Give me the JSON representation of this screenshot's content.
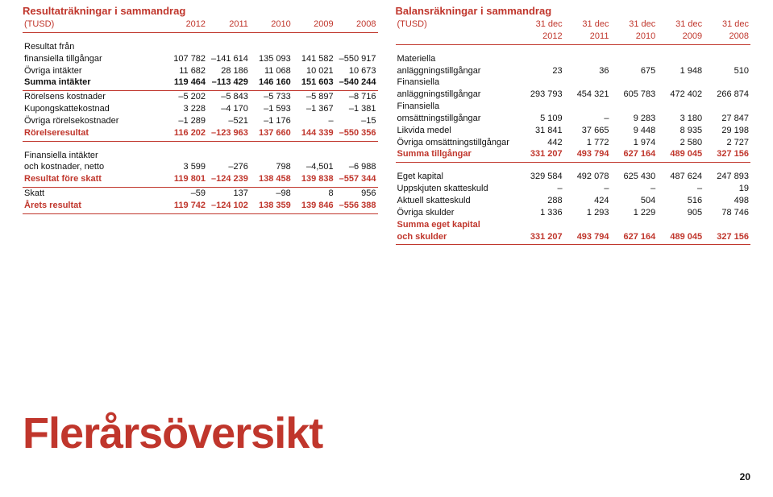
{
  "accent_color": "#c0362c",
  "page_number": "20",
  "big_title": "Flerårsöversikt",
  "income": {
    "title": "Resultaträkningar i sammandrag",
    "unit": "(TUSD)",
    "years": [
      "2012",
      "2011",
      "2010",
      "2009",
      "2008"
    ],
    "rows": [
      {
        "type": "text",
        "label": "Resultat från"
      },
      {
        "type": "data",
        "label": "finansiella tillgångar",
        "v": [
          "107 782",
          "–141 614",
          "135 093",
          "141 582",
          "–550 917"
        ]
      },
      {
        "type": "data",
        "label": "Övriga intäkter",
        "v": [
          "11 682",
          "28 186",
          "11 068",
          "10 021",
          "10 673"
        ]
      },
      {
        "type": "data",
        "label": "Summa intäkter",
        "v": [
          "119 464",
          "–113 429",
          "146 160",
          "151 603",
          "–540 244"
        ],
        "bold": true,
        "rule_after": true
      },
      {
        "type": "data",
        "label": "Rörelsens kostnader",
        "v": [
          "–5 202",
          "–5 843",
          "–5 733",
          "–5 897",
          "–8 716"
        ]
      },
      {
        "type": "data",
        "label": "Kupongskattekostnad",
        "v": [
          "3 228",
          "–4 170",
          "–1 593",
          "–1 367",
          "–1 381"
        ]
      },
      {
        "type": "data",
        "label": "Övriga rörelsekostnader",
        "v": [
          "–1 289",
          "–521",
          "–1 176",
          "–",
          "–15"
        ]
      },
      {
        "type": "data",
        "label": "Rörelseresultat",
        "v": [
          "116 202",
          "–123 963",
          "137 660",
          "144 339",
          "–550 356"
        ],
        "bold": true,
        "accent": true,
        "rule_after": true
      },
      {
        "type": "spacer"
      },
      {
        "type": "text",
        "label": "Finansiella intäkter"
      },
      {
        "type": "data",
        "label": "och kostnader, netto",
        "v": [
          "3 599",
          "–276",
          "798",
          "–4,501",
          "–6 988"
        ]
      },
      {
        "type": "data",
        "label": "Resultat före skatt",
        "v": [
          "119 801",
          "–124 239",
          "138 458",
          "139 838",
          "–557 344"
        ],
        "bold": true,
        "accent": true,
        "rule_after": true
      },
      {
        "type": "data",
        "label": "Skatt",
        "v": [
          "–59",
          "137",
          "–98",
          "8",
          "956"
        ]
      },
      {
        "type": "data",
        "label": "Årets resultat",
        "v": [
          "119 742",
          "–124 102",
          "138 359",
          "139 846",
          "–556 388"
        ],
        "bold": true,
        "accent": true,
        "rule_after": true
      }
    ]
  },
  "balance": {
    "title": "Balansräkningar i sammandrag",
    "unit": "(TUSD)",
    "years_top": [
      "31 dec",
      "31 dec",
      "31 dec",
      "31 dec",
      "31 dec"
    ],
    "years_bot": [
      "2012",
      "2011",
      "2010",
      "2009",
      "2008"
    ],
    "rows": [
      {
        "type": "text",
        "label": "Materiella"
      },
      {
        "type": "data",
        "label": "anläggningstillgångar",
        "v": [
          "23",
          "36",
          "675",
          "1 948",
          "510"
        ]
      },
      {
        "type": "text",
        "label": "Finansiella"
      },
      {
        "type": "data",
        "label": "anläggningstillgångar",
        "v": [
          "293 793",
          "454 321",
          "605 783",
          "472 402",
          "266 874"
        ]
      },
      {
        "type": "text",
        "label": "Finansiella"
      },
      {
        "type": "data",
        "label": "omsättningstillgångar",
        "v": [
          "5 109",
          "–",
          "9 283",
          "3 180",
          "27 847"
        ]
      },
      {
        "type": "data",
        "label": "Likvida medel",
        "v": [
          "31 841",
          "37 665",
          "9 448",
          "8 935",
          "29 198"
        ]
      },
      {
        "type": "data",
        "label": "Övriga omsättningstillgångar",
        "v": [
          "442",
          "1 772",
          "1 974",
          "2 580",
          "2 727"
        ]
      },
      {
        "type": "data",
        "label": "Summa tillgångar",
        "v": [
          "331 207",
          "493 794",
          "627 164",
          "489 045",
          "327 156"
        ],
        "bold": true,
        "accent": true,
        "rule_after": true
      },
      {
        "type": "spacer"
      },
      {
        "type": "data",
        "label": "Eget kapital",
        "v": [
          "329 584",
          "492 078",
          "625 430",
          "487 624",
          "247 893"
        ]
      },
      {
        "type": "data",
        "label": "Uppskjuten skatteskuld",
        "v": [
          "–",
          "–",
          "–",
          "–",
          "19"
        ]
      },
      {
        "type": "data",
        "label": "Aktuell skatteskuld",
        "v": [
          "288",
          "424",
          "504",
          "516",
          "498"
        ]
      },
      {
        "type": "data",
        "label": "Övriga skulder",
        "v": [
          "1 336",
          "1 293",
          "1 229",
          "905",
          "78 746"
        ]
      },
      {
        "type": "text",
        "label": "Summa eget kapital",
        "accent": true,
        "bold": true
      },
      {
        "type": "data",
        "label": "och skulder",
        "v": [
          "331 207",
          "493 794",
          "627 164",
          "489 045",
          "327 156"
        ],
        "bold": true,
        "accent": true,
        "rule_after": true
      }
    ]
  }
}
